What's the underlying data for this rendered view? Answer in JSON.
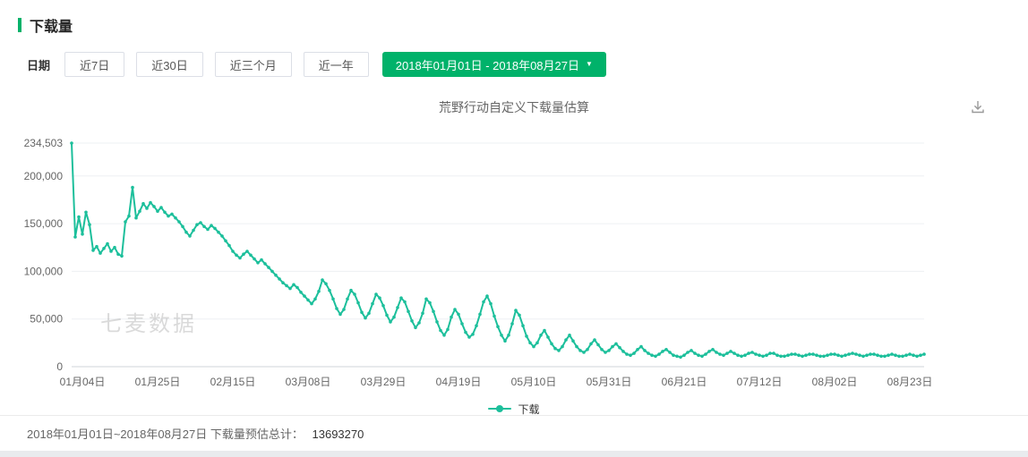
{
  "header": {
    "title": "下载量",
    "accent_color": "#00b26a"
  },
  "filters": {
    "label": "日期",
    "ranges": [
      {
        "label": "近7日"
      },
      {
        "label": "近30日"
      },
      {
        "label": "近三个月"
      },
      {
        "label": "近一年"
      }
    ],
    "custom_range": {
      "label": "2018年01月01日 - 2018年08月27日",
      "caret": "▼",
      "active": true
    }
  },
  "chart": {
    "title": "荒野行动自定义下载量估算",
    "watermark": "七麦数据"
  },
  "chart_data": {
    "type": "line",
    "title": "荒野行动自定义下载量估算",
    "x_start_date": "2018年01月01日",
    "x_end_date": "2018年08月27日",
    "x_tick_indices": [
      3,
      24,
      45,
      66,
      87,
      108,
      129,
      150,
      171,
      192,
      213,
      234
    ],
    "x_tick_labels": [
      "01月04日",
      "01月25日",
      "02月15日",
      "03月08日",
      "03月29日",
      "04月19日",
      "05月10日",
      "05月31日",
      "06月21日",
      "07月12日",
      "08月02日",
      "08月23日"
    ],
    "y_ticks": [
      0,
      50000,
      100000,
      150000,
      200000,
      234503
    ],
    "y_tick_labels": [
      "0",
      "50,000",
      "100,000",
      "150,000",
      "200,000",
      "234,503"
    ],
    "ylim": [
      0,
      234503
    ],
    "grid": true,
    "legend_position": "bottom",
    "series": [
      {
        "name": "下载",
        "color": "#1cbf9b",
        "values": [
          234503,
          136000,
          157000,
          139000,
          162000,
          149000,
          122000,
          126000,
          119000,
          124000,
          129000,
          121000,
          125000,
          118000,
          116000,
          152000,
          158000,
          188000,
          156000,
          163000,
          171000,
          166000,
          172000,
          168000,
          163000,
          167000,
          162000,
          158000,
          160000,
          156000,
          152000,
          147000,
          141000,
          137000,
          143000,
          149000,
          151000,
          147000,
          144000,
          148000,
          145000,
          141000,
          137000,
          132000,
          127000,
          121000,
          117000,
          114000,
          118000,
          121000,
          117000,
          113000,
          109000,
          112000,
          108000,
          104000,
          100000,
          96000,
          92000,
          88000,
          85000,
          82000,
          86000,
          83000,
          78000,
          74000,
          70000,
          66000,
          71000,
          79000,
          91000,
          87000,
          80000,
          71000,
          61000,
          55000,
          60000,
          71000,
          80000,
          76000,
          67000,
          57000,
          51000,
          56000,
          66000,
          76000,
          72000,
          64000,
          54000,
          47000,
          52000,
          62000,
          72000,
          68000,
          58000,
          48000,
          41000,
          46000,
          56000,
          71000,
          67000,
          58000,
          47000,
          38000,
          33000,
          39000,
          52000,
          60000,
          55000,
          45000,
          36000,
          31000,
          34000,
          43000,
          55000,
          68000,
          74000,
          66000,
          53000,
          42000,
          33000,
          27000,
          33000,
          45000,
          59000,
          54000,
          43000,
          32000,
          25000,
          21000,
          25000,
          33000,
          38000,
          31000,
          24000,
          19000,
          17000,
          21000,
          28000,
          33000,
          27000,
          21000,
          17000,
          15000,
          18000,
          24000,
          28000,
          23000,
          18000,
          15000,
          17000,
          21000,
          24000,
          20000,
          16000,
          13000,
          12000,
          14000,
          18000,
          21000,
          17000,
          14000,
          12000,
          11000,
          13000,
          16000,
          18000,
          15000,
          12000,
          11000,
          10000,
          12000,
          15000,
          17000,
          14000,
          12000,
          11000,
          13000,
          16000,
          18000,
          15000,
          13000,
          12000,
          14000,
          16000,
          14000,
          12000,
          11000,
          12000,
          14000,
          15000,
          13000,
          12000,
          11000,
          12000,
          14000,
          14000,
          12000,
          11000,
          11000,
          12000,
          13000,
          13000,
          12000,
          11000,
          12000,
          13000,
          13000,
          12000,
          11000,
          11000,
          12000,
          13000,
          13000,
          12000,
          11000,
          12000,
          13000,
          14000,
          13000,
          12000,
          11000,
          12000,
          13000,
          13000,
          12000,
          11000,
          11000,
          12000,
          13000,
          12000,
          11000,
          11000,
          12000,
          13000,
          12000,
          11000,
          12000,
          13000
        ]
      }
    ]
  },
  "footer": {
    "summary_label": "2018年01月01日~2018年08月27日 下载量预估总计：",
    "total": "13693270"
  }
}
